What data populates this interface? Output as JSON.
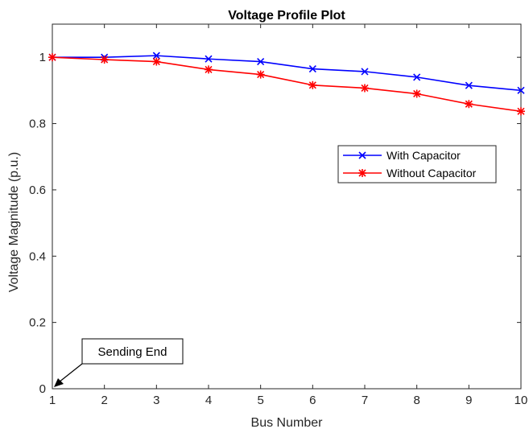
{
  "chart_data": {
    "type": "line",
    "title": "Voltage Profile Plot",
    "xlabel": "Bus Number",
    "ylabel": "Voltage Magnitude (p.u.)",
    "xlim": [
      1,
      10
    ],
    "ylim": [
      0,
      1.1
    ],
    "x": [
      1,
      2,
      3,
      4,
      5,
      6,
      7,
      8,
      9,
      10
    ],
    "xticks": [
      "1",
      "2",
      "3",
      "4",
      "5",
      "6",
      "7",
      "8",
      "9",
      "10"
    ],
    "yticks": [
      {
        "value": 0,
        "label": "0"
      },
      {
        "value": 0.2,
        "label": "0.2"
      },
      {
        "value": 0.4,
        "label": "0.4"
      },
      {
        "value": 0.6,
        "label": "0.6"
      },
      {
        "value": 0.8,
        "label": "0.8"
      },
      {
        "value": 1,
        "label": "1"
      }
    ],
    "grid": false,
    "legend_position": "right",
    "series": [
      {
        "name": "With Capacitor",
        "color": "#0000ff",
        "marker": "x",
        "values": [
          1.0,
          1.0,
          1.005,
          0.995,
          0.987,
          0.965,
          0.957,
          0.94,
          0.915,
          0.9
        ]
      },
      {
        "name": "Without Capacitor",
        "color": "#ff0000",
        "marker": "asterisk",
        "values": [
          1.0,
          0.993,
          0.987,
          0.963,
          0.948,
          0.916,
          0.907,
          0.89,
          0.859,
          0.837
        ]
      }
    ],
    "annotation": {
      "text": "Sending End",
      "x": 1,
      "y": 0
    }
  }
}
